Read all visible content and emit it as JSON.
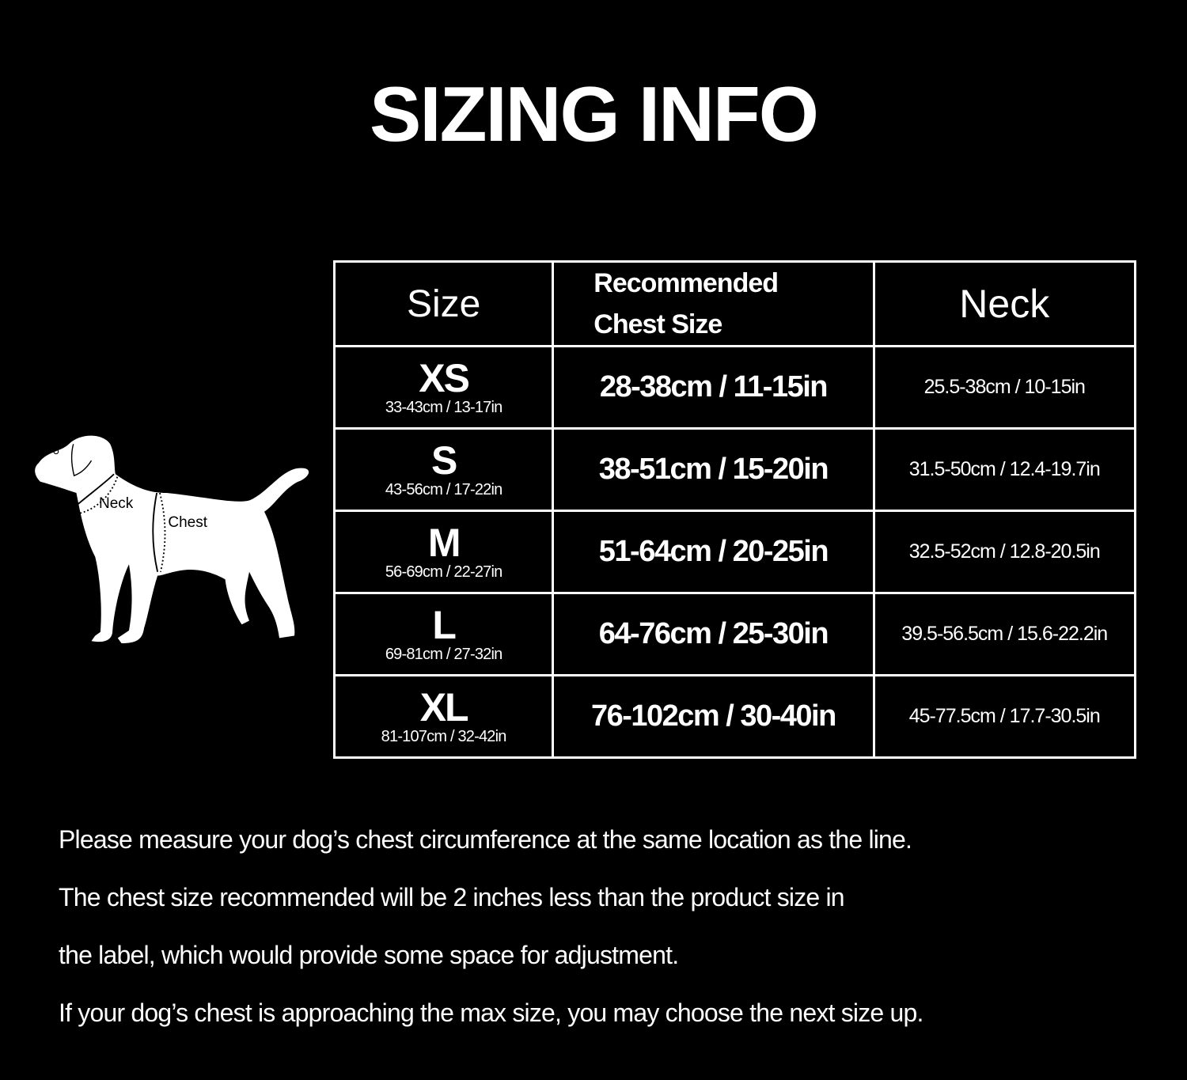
{
  "title": "SIZING INFO",
  "diagram": {
    "neck_label": "Neck",
    "chest_label": "Chest"
  },
  "table": {
    "headers": {
      "size": "Size",
      "chest_line1": "Recommended",
      "chest_line2": "Chest Size",
      "neck": "Neck"
    },
    "rows": [
      {
        "size": "XS",
        "product": "33-43cm / 13-17in",
        "chest": "28-38cm / 11-15in",
        "neck": "25.5-38cm / 10-15in"
      },
      {
        "size": "S",
        "product": "43-56cm / 17-22in",
        "chest": "38-51cm / 15-20in",
        "neck": "31.5-50cm / 12.4-19.7in"
      },
      {
        "size": "M",
        "product": "56-69cm / 22-27in",
        "chest": "51-64cm / 20-25in",
        "neck": "32.5-52cm / 12.8-20.5in"
      },
      {
        "size": "L",
        "product": "69-81cm / 27-32in",
        "chest": "64-76cm / 25-30in",
        "neck": "39.5-56.5cm / 15.6-22.2in"
      },
      {
        "size": "XL",
        "product": "81-107cm / 32-42in",
        "chest": "76-102cm / 30-40in",
        "neck": "45-77.5cm / 17.7-30.5in"
      }
    ]
  },
  "notes": [
    "Please measure your dog’s chest circumference at the same location as the line.",
    "The chest size recommended will be 2 inches less than the product size in",
    "the label, which would provide some space for adjustment.",
    "If your dog’s chest is approaching the max size, you may choose the next size up."
  ]
}
